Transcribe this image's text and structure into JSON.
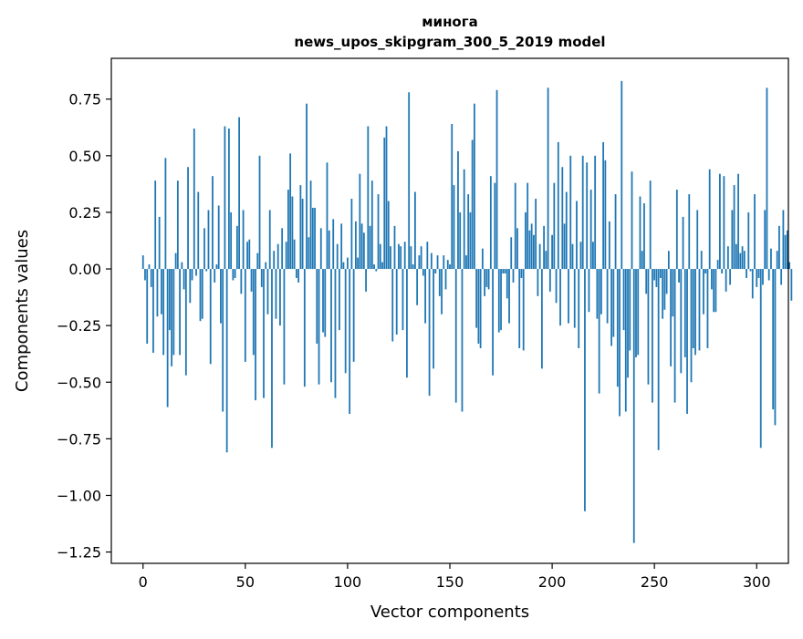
{
  "chart_data": {
    "type": "bar",
    "title_line1": "минога",
    "title_line2": "news_upos_skipgram_300_5_2019 model",
    "xlabel": "Vector components",
    "ylabel": "Components values",
    "xlim": [
      -15.5,
      315.5
    ],
    "ylim": [
      -1.3,
      0.93
    ],
    "xticks": [
      0,
      50,
      100,
      150,
      200,
      250,
      300
    ],
    "xtick_labels": [
      "0",
      "50",
      "100",
      "150",
      "200",
      "250",
      "300"
    ],
    "yticks": [
      0.75,
      0.5,
      0.25,
      0.0,
      -0.25,
      -0.5,
      -0.75,
      -1.0,
      -1.25
    ],
    "ytick_labels": [
      "0.75",
      "0.50",
      "0.25",
      "0.00",
      "−0.25",
      "−0.50",
      "−0.75",
      "−1.00",
      "−1.25"
    ],
    "color": "#1f77b4",
    "values": [
      0.06,
      -0.05,
      -0.33,
      0.02,
      -0.08,
      -0.37,
      0.39,
      -0.21,
      0.23,
      -0.2,
      -0.38,
      0.49,
      -0.61,
      -0.27,
      -0.43,
      -0.38,
      0.07,
      0.39,
      -0.38,
      0.03,
      -0.09,
      -0.47,
      0.45,
      -0.15,
      -0.05,
      0.62,
      -0.03,
      0.34,
      -0.23,
      -0.22,
      0.18,
      -0.01,
      0.26,
      -0.42,
      0.41,
      -0.06,
      0.02,
      0.28,
      -0.24,
      -0.63,
      0.63,
      -0.81,
      0.62,
      0.25,
      -0.05,
      -0.04,
      0.19,
      0.67,
      -0.11,
      0.26,
      -0.41,
      0.12,
      0.13,
      -0.1,
      -0.38,
      -0.58,
      0.07,
      0.5,
      -0.08,
      -0.57,
      0.03,
      -0.2,
      0.26,
      -0.79,
      0.08,
      -0.22,
      0.11,
      -0.25,
      0.18,
      -0.51,
      0.12,
      0.35,
      0.51,
      0.32,
      0.13,
      -0.04,
      -0.06,
      0.37,
      0.31,
      -0.52,
      0.73,
      0.14,
      0.39,
      0.27,
      0.27,
      -0.33,
      -0.51,
      0.18,
      -0.28,
      -0.3,
      0.47,
      0.17,
      -0.5,
      0.22,
      -0.57,
      0.11,
      -0.27,
      0.2,
      0.03,
      -0.46,
      0.05,
      -0.64,
      0.31,
      -0.41,
      0.21,
      0.05,
      0.42,
      0.2,
      0.16,
      -0.1,
      0.63,
      0.19,
      0.39,
      0.02,
      -0.01,
      0.33,
      0.11,
      0.03,
      0.58,
      0.63,
      0.3,
      0.1,
      -0.32,
      0.19,
      -0.29,
      0.11,
      0.1,
      -0.27,
      0.12,
      -0.48,
      0.78,
      0.1,
      0.02,
      0.34,
      -0.16,
      0.06,
      0.1,
      -0.03,
      -0.24,
      0.12,
      -0.56,
      0.07,
      -0.44,
      -0.02,
      0.06,
      -0.12,
      -0.2,
      0.06,
      -0.09,
      0.04,
      0.02,
      0.64,
      0.37,
      -0.59,
      0.52,
      0.25,
      -0.63,
      0.44,
      0.06,
      0.33,
      0.25,
      0.57,
      0.73,
      -0.26,
      -0.33,
      -0.35,
      0.09,
      -0.12,
      -0.08,
      -0.09,
      0.41,
      -0.47,
      0.38,
      0.79,
      -0.28,
      -0.27,
      -0.02,
      -0.02,
      -0.13,
      -0.24,
      0.14,
      -0.06,
      0.38,
      0.18,
      -0.35,
      -0.04,
      -0.36,
      0.25,
      0.38,
      0.17,
      0.2,
      0.15,
      0.31,
      -0.12,
      0.11,
      -0.44,
      0.19,
      0.08,
      0.8,
      -0.1,
      0.15,
      0.38,
      -0.15,
      0.56,
      -0.25,
      0.45,
      0.2,
      0.34,
      -0.24,
      0.5,
      0.11,
      -0.26,
      0.3,
      -0.35,
      0.12,
      0.5,
      -1.07,
      0.47,
      -0.19,
      0.35,
      0.12,
      0.5,
      -0.22,
      -0.55,
      -0.2,
      0.56,
      0.48,
      -0.24,
      0.21,
      -0.34,
      -0.3,
      0.33,
      -0.52,
      -0.65,
      0.83,
      -0.27,
      -0.63,
      -0.48,
      -0.36,
      0.43,
      -1.21,
      -0.39,
      -0.38,
      0.32,
      0.08,
      0.29,
      -0.11,
      -0.51,
      0.39,
      -0.59,
      -0.05,
      -0.08,
      -0.8,
      -0.04,
      -0.22,
      -0.18,
      -0.11,
      0.08,
      -0.43,
      -0.21,
      -0.59,
      0.35,
      -0.06,
      -0.46,
      0.23,
      -0.39,
      -0.64,
      0.33,
      -0.5,
      -0.35,
      -0.38,
      0.26,
      -0.36,
      0.08,
      -0.2,
      -0.02,
      -0.35,
      0.44,
      -0.09,
      -0.19,
      -0.19,
      0.04,
      0.42,
      -0.02,
      0.41,
      -0.1,
      0.1,
      -0.07,
      0.26,
      0.37,
      0.11,
      0.42,
      0.07,
      0.1,
      0.08,
      -0.04,
      0.25,
      -0.01,
      -0.13,
      0.33,
      -0.08,
      -0.04,
      -0.79,
      -0.07,
      0.26,
      0.8,
      -0.05,
      0.09,
      -0.62,
      -0.69,
      0.08,
      0.19,
      -0.07,
      0.26,
      0.15,
      0.17,
      0.03,
      -0.14
    ]
  }
}
